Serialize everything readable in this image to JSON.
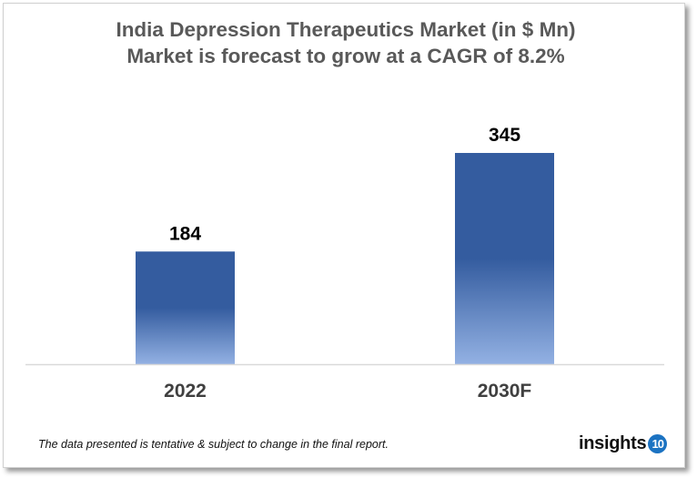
{
  "chart_data": {
    "type": "bar",
    "title": "India Depression Therapeutics Market (in $ Mn)",
    "subtitle": "Market is forecast to grow at a CAGR of 8.2%",
    "categories": [
      "2022",
      "2030F"
    ],
    "values": [
      184,
      345
    ],
    "data_labels": [
      "184",
      "345"
    ],
    "xlabel": "",
    "ylabel": "",
    "ylim": [
      0,
      400
    ],
    "grid": false,
    "legend": "none",
    "colors": {
      "bar_top": "#345c9f",
      "bar_bottom": "#93b1e3",
      "label": "#000000",
      "tick": "#404040"
    }
  },
  "footnote": "The data presented is tentative & subject to change in the final report.",
  "logo": {
    "text": "insights",
    "badge": "10",
    "badge_color": "#1c73c2"
  }
}
